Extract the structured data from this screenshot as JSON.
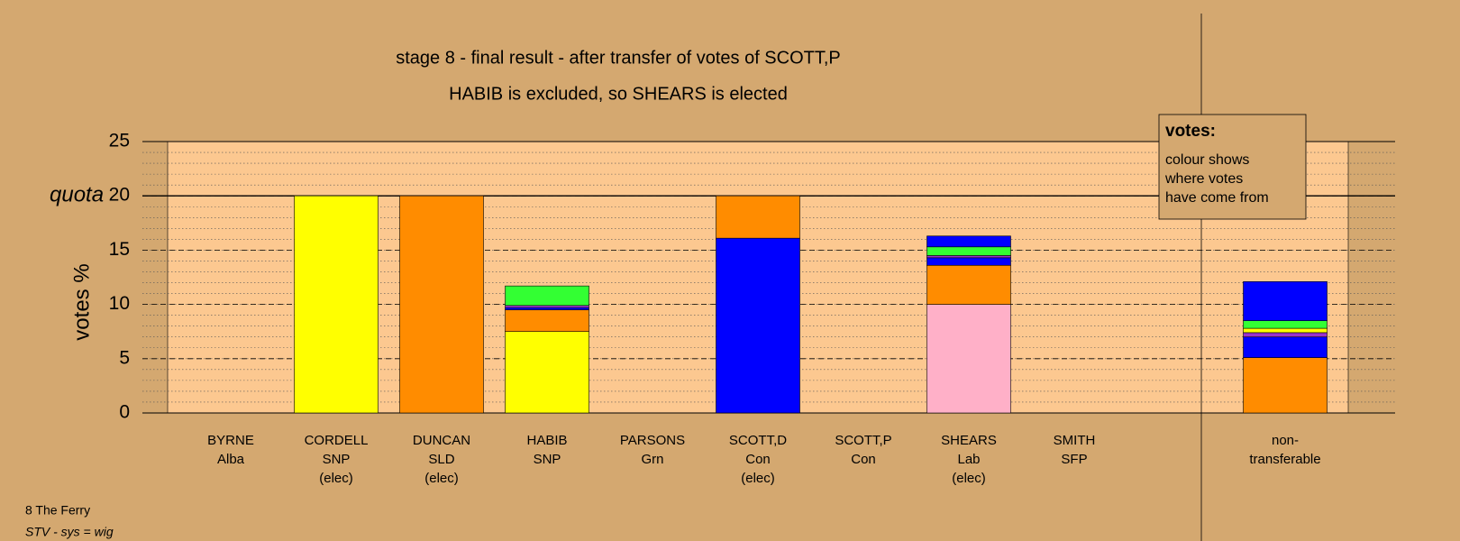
{
  "chart_data": {
    "type": "stacked_bar",
    "title": "stage 8 - final result - after transfer of votes of SCOTT,P",
    "subtitle": "HABIB is excluded, so SHEARS is elected",
    "y_label": "votes %",
    "quota_label": "quota",
    "quota": 20,
    "categories": [
      [
        "BYRNE",
        "Alba"
      ],
      [
        "CORDELL",
        "SNP",
        "(elec)"
      ],
      [
        "DUNCAN",
        "SLD",
        "(elec)"
      ],
      [
        "HABIB",
        "SNP"
      ],
      [
        "PARSONS",
        "Grn"
      ],
      [
        "SCOTT,D",
        "Con",
        "(elec)"
      ],
      [
        "SCOTT,P",
        "Con"
      ],
      [
        "SHEARS",
        "Lab",
        "(elec)"
      ],
      [
        "SMITH",
        "SFP"
      ],
      [
        "non-",
        "transferable"
      ]
    ],
    "series": [
      {
        "color": "#ffb0c8",
        "values": [
          0,
          0,
          0,
          0,
          0,
          0,
          0,
          10,
          0,
          0
        ]
      },
      {
        "color": "#ffff00",
        "values": [
          0,
          20,
          0,
          7.5,
          0,
          0,
          0,
          0,
          0,
          0
        ]
      },
      {
        "color": "#0000ff",
        "values": [
          0,
          0,
          0,
          0,
          0,
          16.1,
          0,
          0,
          0,
          0
        ]
      },
      {
        "color": "#ff8c00",
        "values": [
          0,
          0,
          20,
          2.0,
          0,
          3.9,
          0,
          3.6,
          0,
          5.1
        ]
      },
      {
        "color": "#0000ff",
        "values": [
          0,
          0,
          0,
          0.2,
          0,
          0,
          0,
          0.7,
          0,
          1.9
        ]
      },
      {
        "color": "#9932cc",
        "values": [
          0,
          0,
          0,
          0.2,
          0,
          0,
          0,
          0.2,
          0,
          0.4
        ]
      },
      {
        "color": "#ffff00",
        "values": [
          0,
          0,
          0,
          0,
          0,
          0,
          0,
          0,
          0,
          0.4
        ]
      },
      {
        "color": "#33ff33",
        "values": [
          0,
          0,
          0,
          1.8,
          0,
          0,
          0,
          0.8,
          0,
          0.7
        ]
      },
      {
        "color": "#0000ff",
        "values": [
          0,
          0,
          0,
          0,
          0,
          0,
          0,
          1.0,
          0,
          3.6
        ]
      }
    ],
    "ylim": [
      0,
      25
    ],
    "yticks": [
      0,
      5,
      10,
      15,
      20,
      25
    ],
    "minor_step": 1,
    "grid": true,
    "legend": {
      "title": "votes:",
      "lines": [
        "colour shows",
        "where votes",
        "have come from"
      ]
    },
    "footer": {
      "place": "8 The Ferry",
      "system": "STV - sys = wig"
    }
  }
}
